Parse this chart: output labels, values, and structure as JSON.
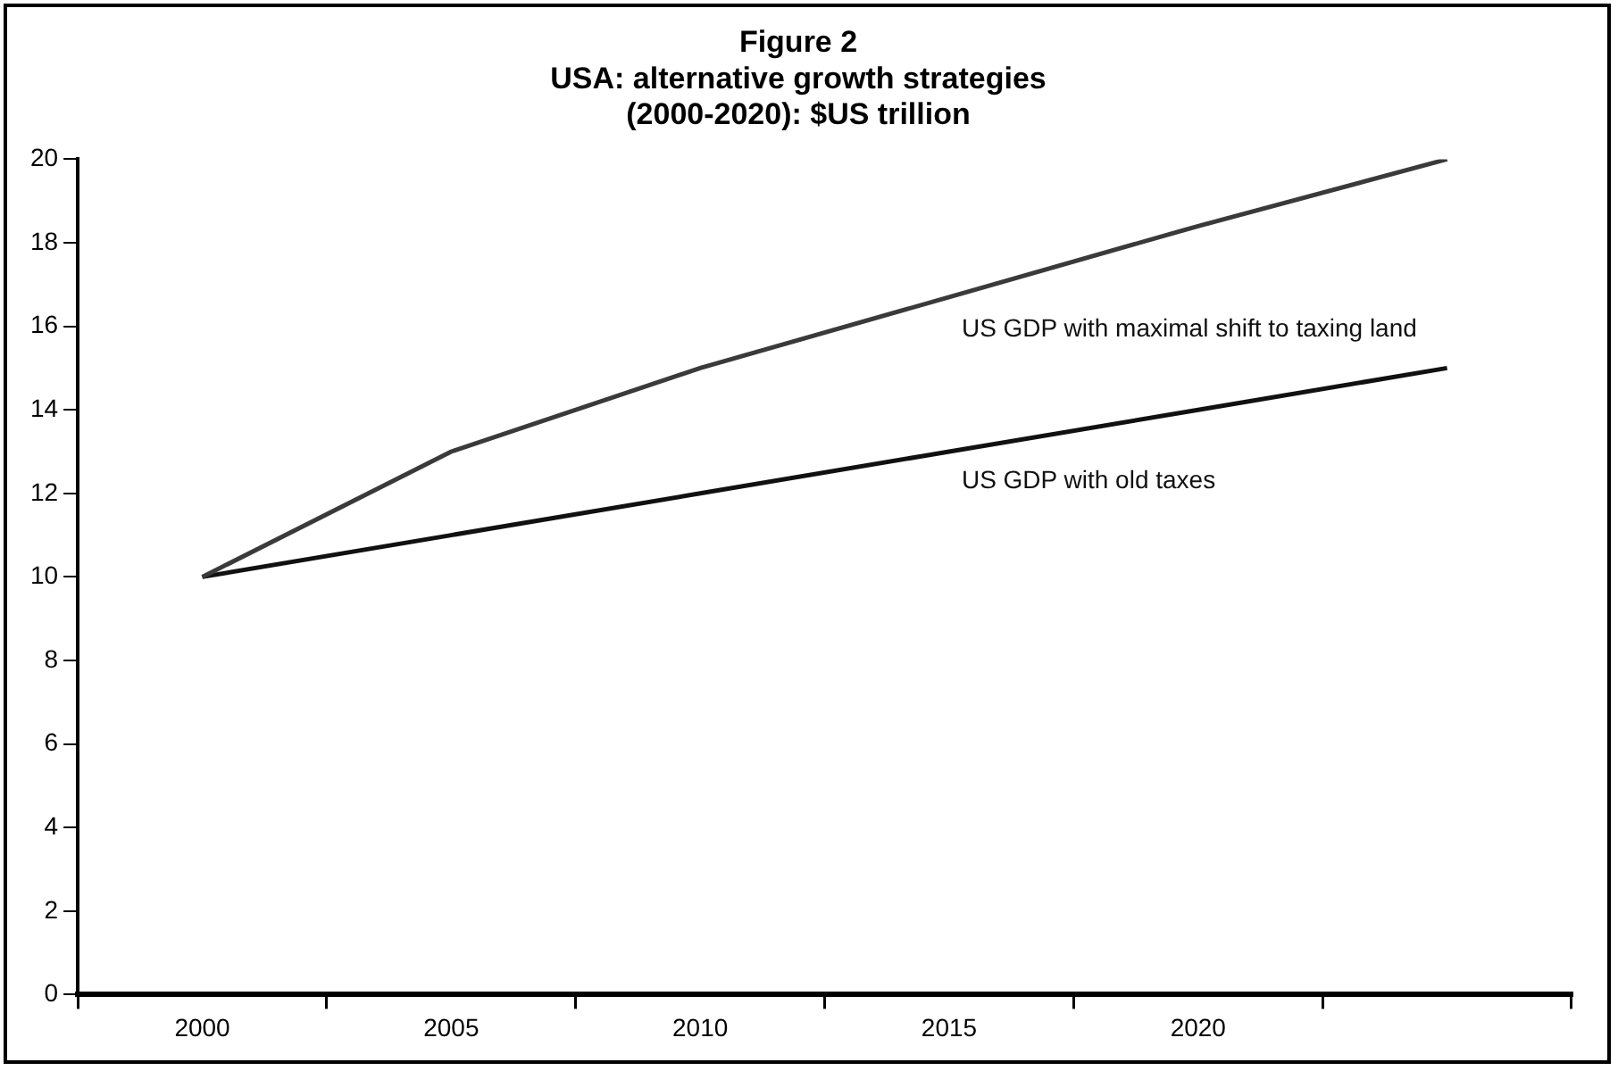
{
  "chart_data": {
    "type": "line",
    "title": "Figure 2\nUSA: alternative growth strategies\n(2000-2020): $US trillion",
    "categories": [
      "2000",
      "2005",
      "2010",
      "2015",
      "2020",
      null
    ],
    "series": [
      {
        "name": "US GDP with maximal shift to taxing land",
        "color": "#3a3a3a",
        "values": [
          10,
          13,
          15,
          16.7,
          18.4,
          20
        ]
      },
      {
        "name": "US GDP with old taxes",
        "color": "#111111",
        "values": [
          10,
          11,
          12,
          13,
          14,
          15
        ]
      }
    ],
    "ylim": [
      0,
      20
    ],
    "yticks": [
      0,
      2,
      4,
      6,
      8,
      10,
      12,
      14,
      16,
      18,
      20
    ],
    "grid": false,
    "legend": false,
    "marker": "none",
    "line_style": "solid"
  }
}
